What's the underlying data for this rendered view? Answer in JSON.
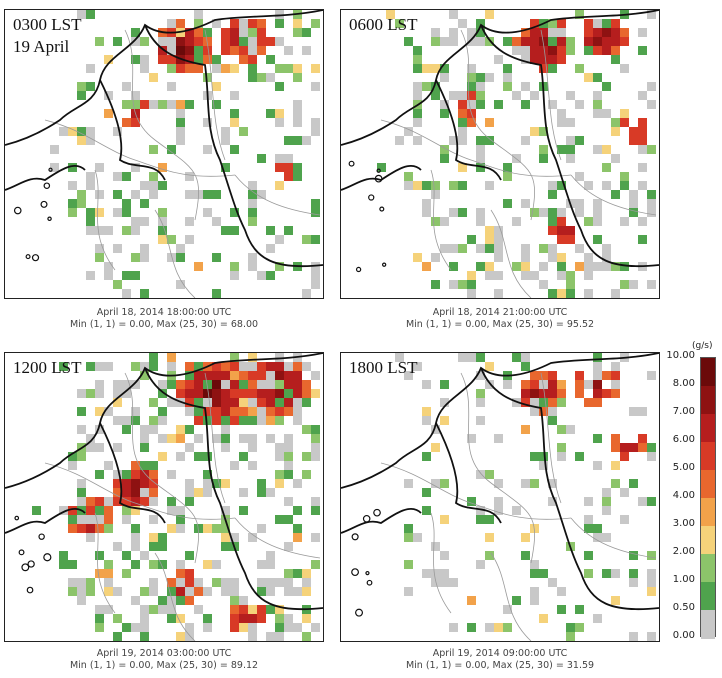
{
  "panels": [
    {
      "label_lines": [
        "0300 LST",
        "19 April"
      ],
      "caption_line1": "April 18, 2014 18:00:00 UTC",
      "caption_line2": "Min (1, 1) = 0.00, Max (25, 30) = 68.00",
      "intensity": 0.45,
      "seed": 11,
      "hotspots": [
        [
          0.55,
          0.12,
          0.09,
          0.9
        ],
        [
          0.75,
          0.08,
          0.08,
          0.8
        ],
        [
          0.4,
          0.35,
          0.05,
          0.5
        ],
        [
          0.88,
          0.55,
          0.04,
          0.4
        ]
      ]
    },
    {
      "label_lines": [
        "0600 LST"
      ],
      "caption_line1": "April 18, 2014 21:00:00 UTC",
      "caption_line2": "Min (1, 1) = 0.00, Max (25, 30) = 95.52",
      "intensity": 0.5,
      "seed": 23,
      "hotspots": [
        [
          0.63,
          0.1,
          0.09,
          1.0
        ],
        [
          0.82,
          0.08,
          0.07,
          0.9
        ],
        [
          0.92,
          0.4,
          0.05,
          0.6
        ],
        [
          0.4,
          0.33,
          0.05,
          0.6
        ],
        [
          0.7,
          0.75,
          0.05,
          0.5
        ]
      ]
    },
    {
      "label_lines": [
        "1200 LST"
      ],
      "caption_line1": "April 19, 2014 03:00:00 UTC",
      "caption_line2": "Min (1, 1) = 0.00, Max (25, 30) = 89.12",
      "intensity": 0.7,
      "seed": 37,
      "hotspots": [
        [
          0.65,
          0.12,
          0.12,
          1.0
        ],
        [
          0.85,
          0.1,
          0.1,
          1.0
        ],
        [
          0.4,
          0.45,
          0.08,
          0.8
        ],
        [
          0.25,
          0.55,
          0.07,
          0.7
        ],
        [
          0.55,
          0.8,
          0.06,
          0.7
        ],
        [
          0.75,
          0.9,
          0.06,
          0.8
        ]
      ]
    },
    {
      "label_lines": [
        "1800 LST"
      ],
      "caption_line1": "April 19, 2014 09:00:00 UTC",
      "caption_line2": "Min (1, 1) = 0.00, Max (25, 30) = 31.59",
      "intensity": 0.35,
      "seed": 53,
      "hotspots": [
        [
          0.62,
          0.12,
          0.07,
          0.85
        ],
        [
          0.8,
          0.1,
          0.07,
          0.7
        ],
        [
          0.9,
          0.3,
          0.05,
          0.5
        ]
      ]
    }
  ],
  "legend": {
    "unit": "(g/s)",
    "ticks": [
      "10.00",
      "8.00",
      "7.00",
      "6.00",
      "5.00",
      "4.00",
      "3.00",
      "2.00",
      "1.00",
      "0.50",
      "0.00"
    ],
    "colors": [
      "#6b0a0a",
      "#8e1212",
      "#b51e1e",
      "#d83a26",
      "#e8672e",
      "#f2a24a",
      "#f5d27a",
      "#8cc46a",
      "#4fa34d",
      "#c8c8c8",
      "#ffffff"
    ]
  }
}
